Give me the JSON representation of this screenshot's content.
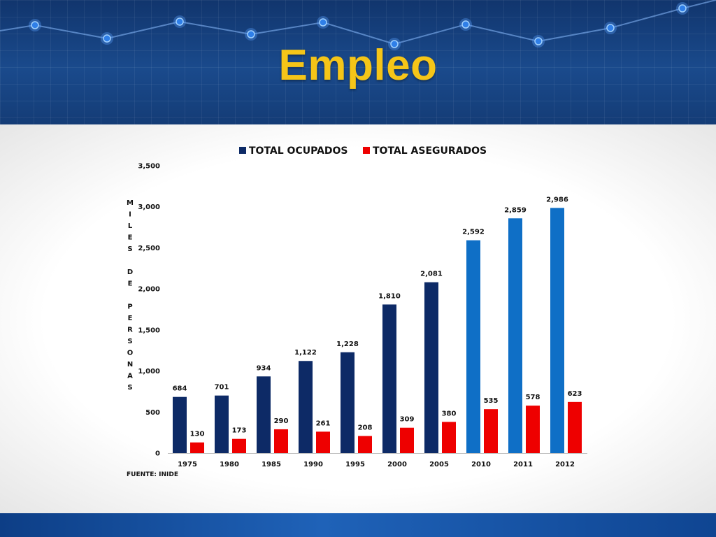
{
  "slide": {
    "title": "Empleo"
  },
  "colors": {
    "ocupados": "#0d2a66",
    "ocupados_recent": "#0f6fc6",
    "asegurados": "#ee0000",
    "title": "#f5c518",
    "header_bg": "#153f7c"
  },
  "chart_data": {
    "type": "bar",
    "categories": [
      "1975",
      "1980",
      "1985",
      "1990",
      "1995",
      "2000",
      "2005",
      "2010",
      "2011",
      "2012"
    ],
    "series": [
      {
        "name": "TOTAL OCUPADOS",
        "values": [
          684,
          701,
          934,
          1122,
          1228,
          1810,
          2081,
          2592,
          2859,
          2986
        ],
        "labels": [
          "684",
          "701",
          "934",
          "1,122",
          "1,228",
          "1,810",
          "2,081",
          "2,592",
          "2,859",
          "2,986"
        ]
      },
      {
        "name": "TOTAL ASEGURADOS",
        "values": [
          130,
          173,
          290,
          261,
          208,
          309,
          380,
          535,
          578,
          623
        ],
        "labels": [
          "130",
          "173",
          "290",
          "261",
          "208",
          "309",
          "380",
          "535",
          "578",
          "623"
        ]
      }
    ],
    "ylabel": "MILES DE PERSONAS",
    "ylim": [
      0,
      3500
    ],
    "yticks": [
      0,
      500,
      1000,
      1500,
      2000,
      2500,
      3000,
      3500
    ],
    "ytick_labels": [
      "0",
      "500",
      "1,000",
      "1,500",
      "2,000",
      "2,500",
      "3,000",
      "3,500"
    ],
    "grid": false,
    "legend": "top-center",
    "source": "FUENTE: INIDE"
  }
}
